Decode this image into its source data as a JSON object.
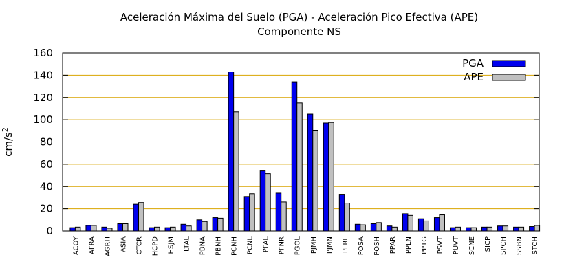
{
  "chart_data": {
    "type": "bar",
    "title": "Aceleración Máxima del Suelo (PGA) -  Aceleración Pico Efectiva (APE)",
    "subtitle": "Componente NS",
    "ylabel": "cm/s",
    "ylabel_superscript": "2",
    "ylim": [
      0,
      160
    ],
    "yticks": [
      0,
      20,
      40,
      60,
      80,
      100,
      120,
      140,
      160
    ],
    "grid": true,
    "legend_position": "top-right",
    "categories": [
      "ACOY",
      "AFRA",
      "AGRH",
      "ASIA",
      "CTCR",
      "HCPD",
      "HSJM",
      "LTAL",
      "PBNA",
      "PBNH",
      "PCNH",
      "PCNL",
      "PFAL",
      "PFNR",
      "PGOL",
      "PJMH",
      "PJMN",
      "PLRL",
      "POSA",
      "POSH",
      "PPAR",
      "PPLN",
      "PPTG",
      "PSVT",
      "PUVT",
      "SCNE",
      "SICP",
      "SPCH",
      "SSBN",
      "STCH"
    ],
    "series": [
      {
        "name": "PGA",
        "color": "#0000ee",
        "values": [
          3,
          5,
          3.5,
          6.5,
          24,
          3,
          3,
          6,
          10,
          12,
          143,
          31,
          54,
          34,
          134,
          105,
          97,
          33,
          6,
          6.5,
          4.5,
          15.5,
          11,
          12,
          3,
          3,
          3.5,
          4.5,
          3.5,
          4
        ]
      },
      {
        "name": "APE",
        "color": "#c0c0c0",
        "values": [
          3.5,
          5,
          2.5,
          6.5,
          25.5,
          3.5,
          3.5,
          4.5,
          8.5,
          11.5,
          107,
          33.5,
          51.5,
          26,
          115,
          90.5,
          97.5,
          25,
          5.5,
          7.5,
          3.5,
          14,
          9,
          14.5,
          3.5,
          3,
          3.5,
          4.5,
          3.5,
          5
        ]
      }
    ]
  }
}
